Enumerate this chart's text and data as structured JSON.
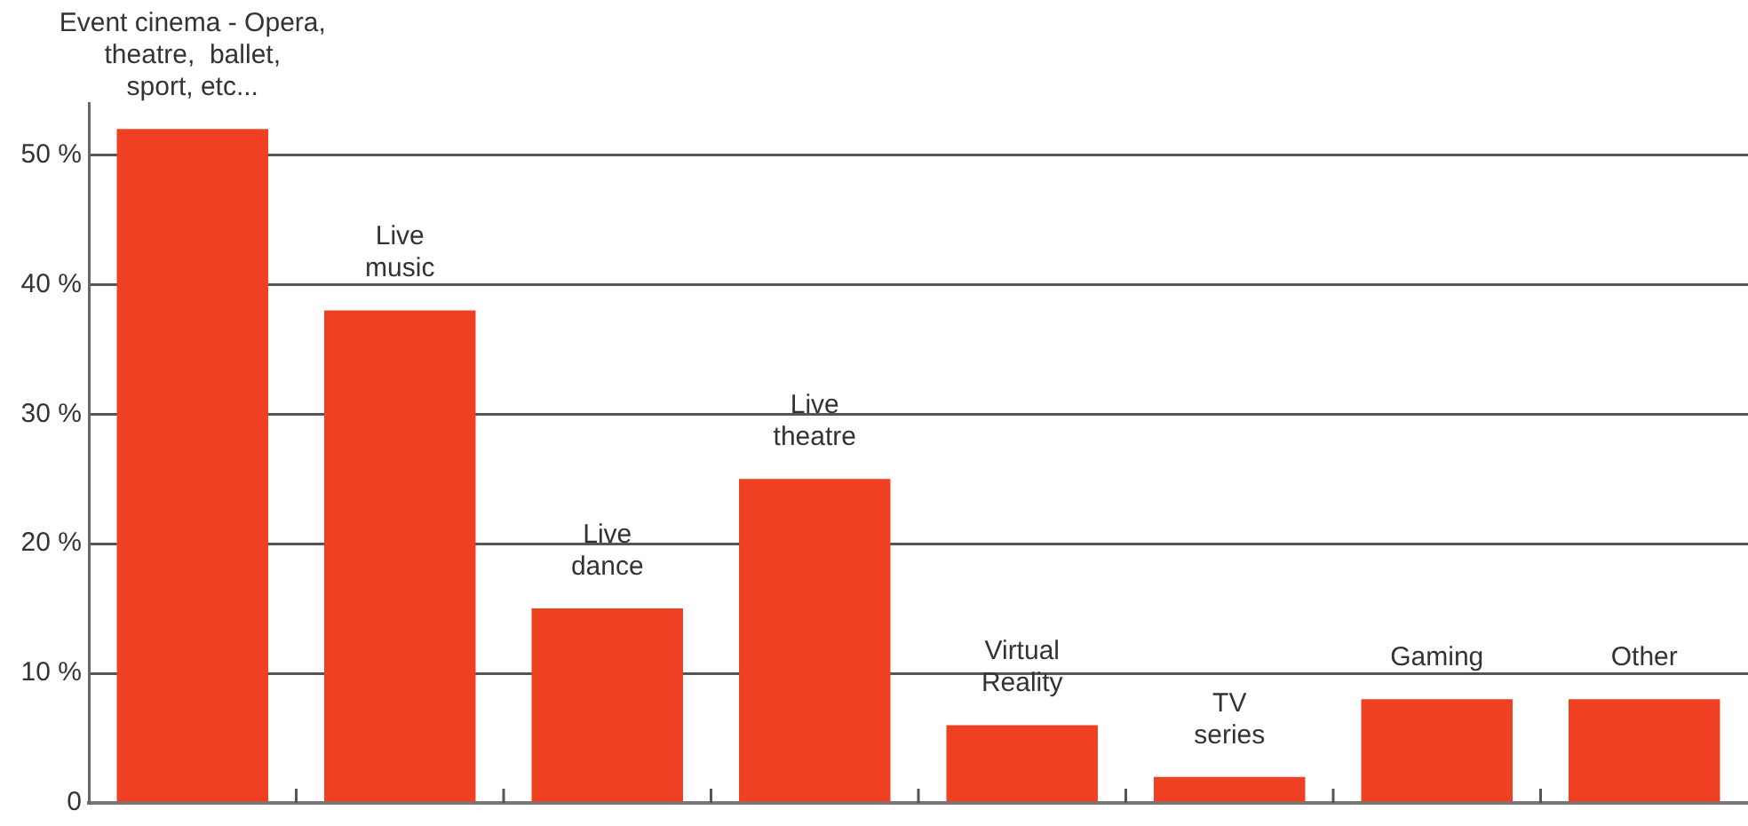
{
  "chart_data": {
    "type": "bar",
    "categories": [
      "Event cinema - Opera,\ntheatre,  ballet,\nsport, etc...",
      "Live\nmusic",
      "Live\ndance",
      "Live\ntheatre",
      "Virtual\nReality",
      "TV\nseries",
      "Gaming",
      "Other"
    ],
    "values": [
      52,
      38,
      15,
      25,
      6,
      2,
      8,
      8
    ],
    "color": "#ef4023",
    "ylim": [
      0,
      54
    ],
    "yticks": [
      0,
      {
        "value": 10,
        "label": "10 %"
      },
      {
        "value": 20,
        "label": "20 %"
      },
      {
        "value": 30,
        "label": "30 %"
      },
      {
        "value": 40,
        "label": "40 %"
      },
      {
        "value": 50,
        "label": "50 %"
      }
    ],
    "grid": "y"
  }
}
